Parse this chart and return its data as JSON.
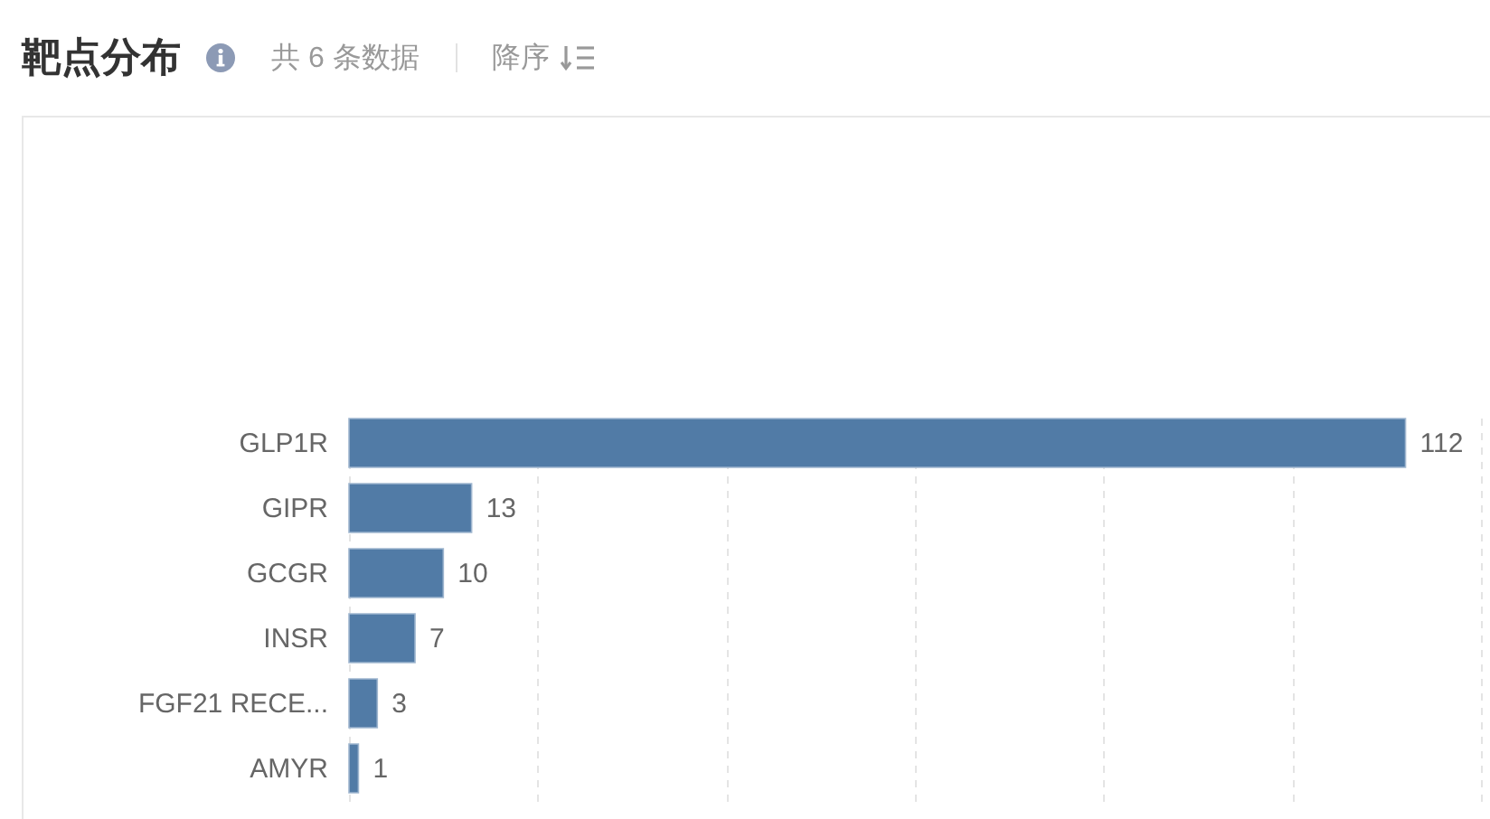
{
  "chart_data": {
    "type": "bar",
    "orientation": "horizontal",
    "title": "靶点分布",
    "subtitle": "共 6 条数据",
    "annotations": [
      "降序"
    ],
    "categories": [
      "GLP1R",
      "GIPR",
      "GCGR",
      "INSR",
      "FGF21 RECE...",
      "AMYR"
    ],
    "values": [
      112,
      13,
      10,
      7,
      3,
      1
    ],
    "color": "#517ba6",
    "xlim": [
      0,
      120
    ],
    "xticks": [
      {
        "value": 0,
        "label": null
      },
      {
        "value": 20,
        "label": null
      },
      {
        "value": 40,
        "label": null
      },
      {
        "value": 60,
        "label": null
      },
      {
        "value": 80,
        "label": null
      },
      {
        "value": 100,
        "label": null
      },
      {
        "value": 120,
        "label": null
      }
    ],
    "grid": "x",
    "data_labels": true,
    "tick_labels": "y"
  }
}
